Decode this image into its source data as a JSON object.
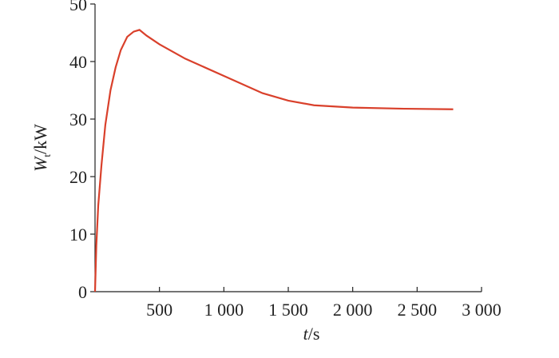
{
  "chart_data": {
    "type": "line",
    "x_label": {
      "symbol": "t",
      "unit": "/s"
    },
    "y_label": {
      "symbol": "W",
      "subscript": "t",
      "unit": "/kW"
    },
    "x": [
      0,
      10,
      25,
      50,
      80,
      120,
      160,
      200,
      250,
      300,
      345,
      400,
      500,
      700,
      1000,
      1300,
      1500,
      1700,
      2000,
      2400,
      2780
    ],
    "series": [
      {
        "color": "#d9402b",
        "values": [
          0,
          8,
          15,
          22,
          29,
          35,
          39,
          42,
          44.3,
          45.2,
          45.5,
          44.5,
          43,
          40.5,
          37.5,
          34.5,
          33.2,
          32.4,
          32,
          31.8,
          31.7
        ]
      }
    ],
    "xlim": [
      0,
      3000
    ],
    "ylim": [
      0,
      50
    ],
    "xticks": [
      500,
      {
        "value": 1000,
        "label": "1 000"
      },
      {
        "value": 1500,
        "label": "1 500"
      },
      {
        "value": 2000,
        "label": "2 000"
      },
      {
        "value": 2500,
        "label": "2 500"
      },
      {
        "value": 3000,
        "label": "3 000"
      }
    ],
    "yticks": [
      0,
      10,
      20,
      30,
      40,
      50
    ]
  }
}
